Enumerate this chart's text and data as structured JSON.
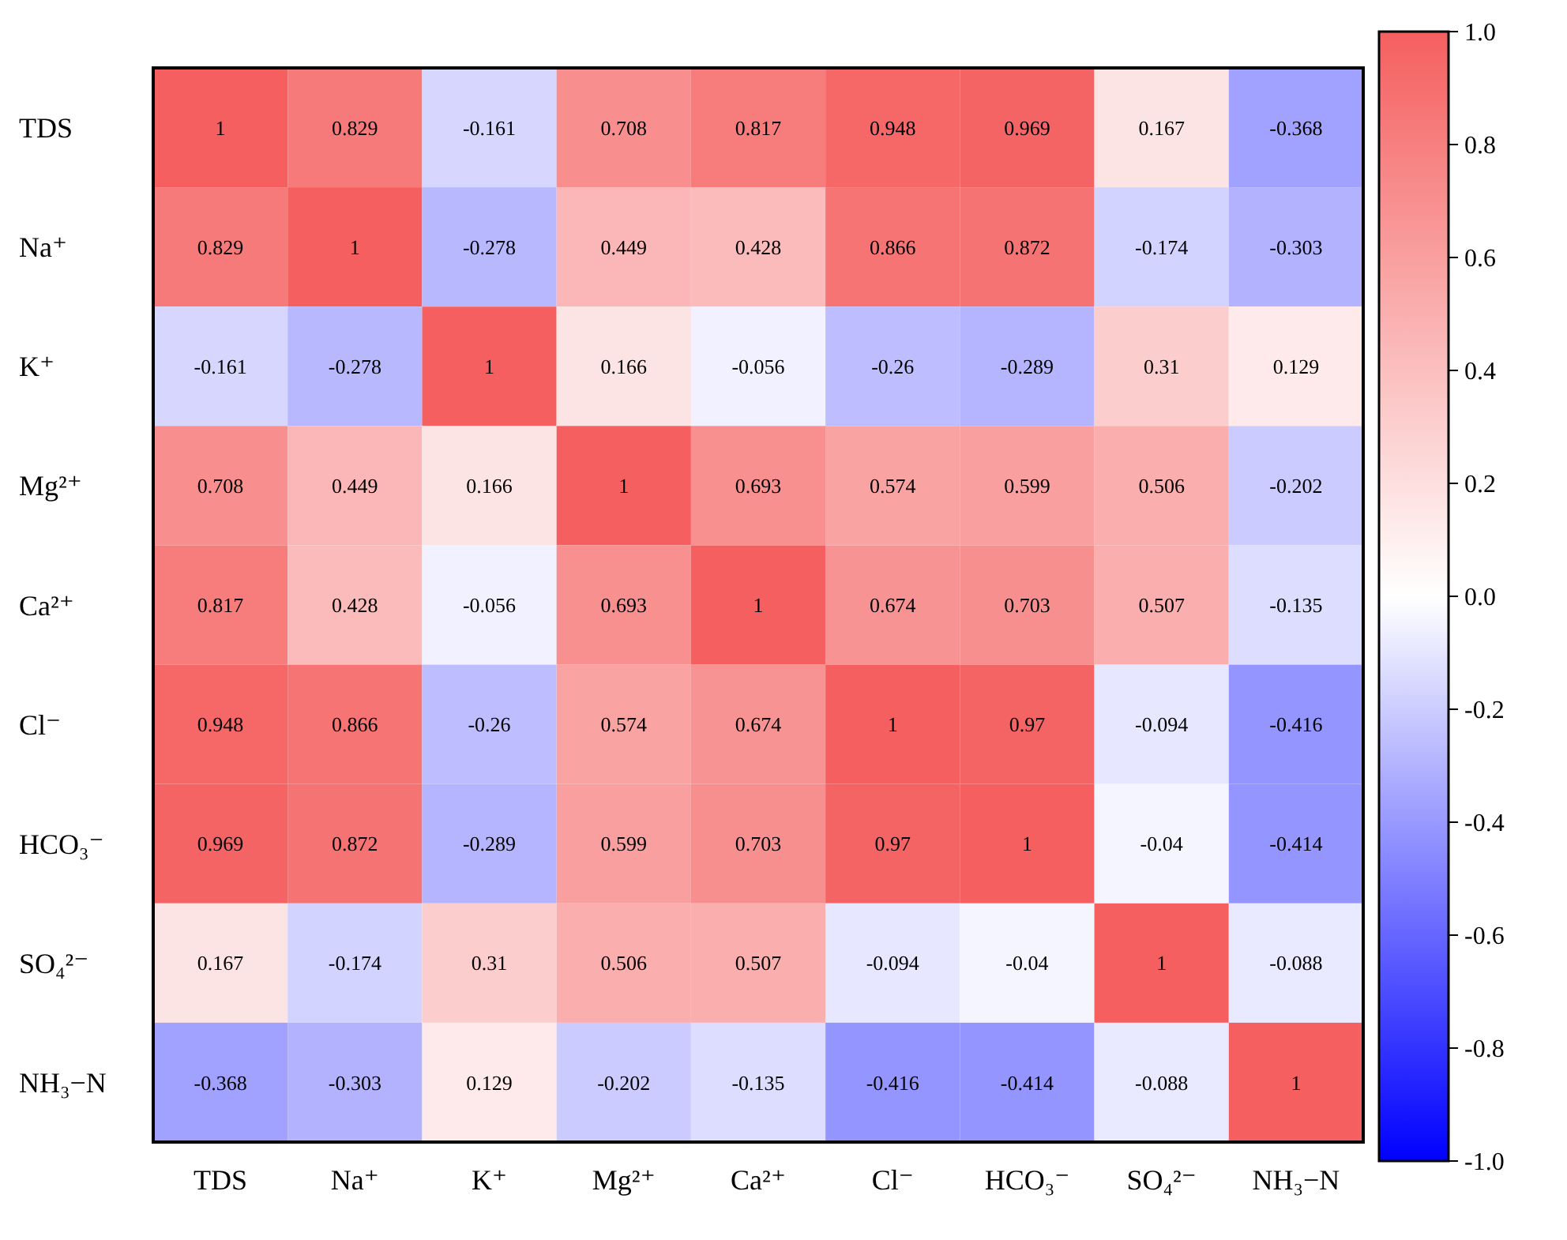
{
  "chart_data": {
    "type": "heatmap",
    "categories": [
      "TDS",
      "Na⁺",
      "K⁺",
      "Mg²⁺",
      "Ca²⁺",
      "Cl⁻",
      "HCO₃⁻",
      "SO₄²⁻",
      "NH₃−N"
    ],
    "y_categories": [
      "TDS",
      "Na⁺",
      "K⁺",
      "Mg²⁺",
      "Ca²⁺",
      "Cl⁻",
      "HCO₃⁻",
      "SO₄²⁻",
      "NH₃−N"
    ],
    "cells": [
      [
        1,
        0.829,
        -0.161,
        0.708,
        0.817,
        0.948,
        0.969,
        0.167,
        -0.368
      ],
      [
        0.829,
        1,
        -0.278,
        0.449,
        0.428,
        0.866,
        0.872,
        -0.174,
        -0.303
      ],
      [
        -0.161,
        -0.278,
        1,
        0.166,
        -0.056,
        -0.26,
        -0.289,
        0.31,
        0.129
      ],
      [
        0.708,
        0.449,
        0.166,
        1,
        0.693,
        0.574,
        0.599,
        0.506,
        -0.202
      ],
      [
        0.817,
        0.428,
        -0.056,
        0.693,
        1,
        0.674,
        0.703,
        0.507,
        -0.135
      ],
      [
        0.948,
        0.866,
        -0.26,
        0.574,
        0.674,
        1,
        0.97,
        -0.094,
        -0.416
      ],
      [
        0.969,
        0.872,
        -0.289,
        0.599,
        0.703,
        0.97,
        1,
        -0.04,
        -0.414
      ],
      [
        0.167,
        -0.174,
        0.31,
        0.506,
        0.507,
        -0.094,
        -0.04,
        1,
        -0.088
      ],
      [
        -0.368,
        -0.303,
        0.129,
        -0.202,
        -0.135,
        -0.416,
        -0.414,
        -0.088,
        1
      ]
    ],
    "data_labels": true,
    "clim": [
      -1,
      1
    ],
    "cticks": [
      {
        "value": 1,
        "label": "1.0"
      },
      {
        "value": 0.8,
        "label": "0.8"
      },
      {
        "value": 0.6,
        "label": "0.6"
      },
      {
        "value": 0.4,
        "label": "0.4"
      },
      {
        "value": 0.2,
        "label": "0.2"
      },
      {
        "value": 0,
        "label": "0.0"
      },
      {
        "value": -0.2,
        "label": "-0.2"
      },
      {
        "value": -0.4,
        "label": "-0.4"
      },
      {
        "value": -0.6,
        "label": "-0.6"
      },
      {
        "value": -0.8,
        "label": "-0.8"
      },
      {
        "value": -1,
        "label": "-1.0"
      }
    ]
  }
}
